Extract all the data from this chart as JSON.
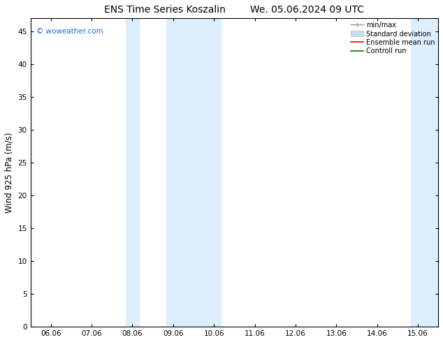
{
  "title_left": "ENS Time Series Koszalin",
  "title_right": "We. 05.06.2024 09 UTC",
  "ylabel": "Wind 925 hPa (m/s)",
  "watermark": "© woweather.com",
  "ylim": [
    0,
    47
  ],
  "yticks": [
    0,
    5,
    10,
    15,
    20,
    25,
    30,
    35,
    40,
    45
  ],
  "xtick_labels": [
    "06.06",
    "07.06",
    "08.06",
    "09.06",
    "10.06",
    "11.06",
    "12.06",
    "13.06",
    "14.06",
    "15.06"
  ],
  "shaded_regions": [
    {
      "x_start": 2.0,
      "x_end": 3.0
    },
    {
      "x_start": 3.5,
      "x_end": 4.0
    },
    {
      "x_start": 9.0,
      "x_end": 9.5
    }
  ],
  "shaded_color": "#ddeeff",
  "bg_color": "#ffffff",
  "legend_items": [
    {
      "label": "min/max",
      "color": "#999999"
    },
    {
      "label": "Standard deviation",
      "color": "#c8ddef"
    },
    {
      "label": "Ensemble mean run",
      "color": "#ff0000"
    },
    {
      "label": "Controll run",
      "color": "#007700"
    }
  ],
  "font_family": "DejaVu Sans",
  "title_fontsize": 10,
  "tick_fontsize": 7.5,
  "ylabel_fontsize": 8.5,
  "watermark_color": "#1a6ed8",
  "spine_color": "#000000",
  "xlim": [
    -0.5,
    9.5
  ]
}
